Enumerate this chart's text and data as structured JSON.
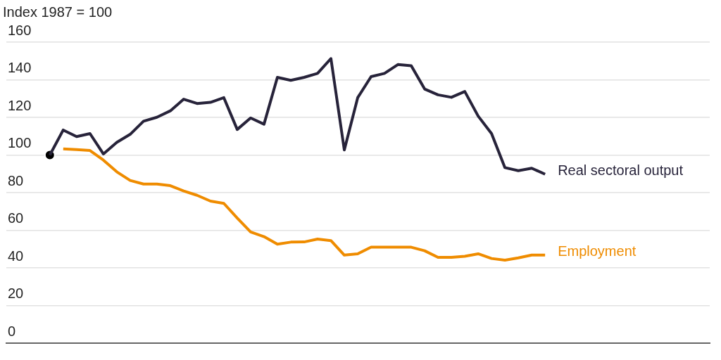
{
  "chart_data": {
    "type": "line",
    "title": "Index 1987 = 100",
    "categories": [
      null,
      null,
      null,
      null,
      null,
      null,
      null,
      null,
      null,
      null,
      null,
      null,
      null,
      null,
      null,
      null,
      null,
      null,
      null,
      null,
      null,
      null,
      null,
      null,
      null,
      null,
      null,
      null,
      null,
      null,
      null,
      null,
      null,
      null,
      null,
      null,
      null,
      null
    ],
    "ylim": [
      0,
      160
    ],
    "yticks": [
      0,
      20,
      40,
      60,
      80,
      100,
      120,
      140,
      160
    ],
    "tick_labels": "y",
    "grid": "y",
    "legend": false,
    "marker": "none",
    "line_style": "solid",
    "series": [
      {
        "name": "Real sectoral output",
        "color": "#27233a",
        "values": [
          100,
          113.3,
          109.8,
          111.4,
          100.6,
          106.7,
          111,
          118,
          120.1,
          123.5,
          129.7,
          127.4,
          128,
          130.5,
          113.6,
          119.7,
          116.4,
          141.3,
          139.7,
          141.3,
          143.4,
          151.3,
          102.7,
          130.5,
          141.7,
          143.4,
          148.1,
          147.5,
          135.1,
          132,
          130.7,
          133.8,
          120.7,
          111.4,
          93.3,
          91.7,
          93,
          89.8
        ]
      },
      {
        "name": "Employment",
        "color": "#ef8c00",
        "values": [
          null,
          103.3,
          102.9,
          102.4,
          97.3,
          91.1,
          86.5,
          84.6,
          84.6,
          83.7,
          80.9,
          78.6,
          75.5,
          74.3,
          66.5,
          59.1,
          56.6,
          52.6,
          53.7,
          53.8,
          55.3,
          54.5,
          46.8,
          47.5,
          51,
          51,
          51,
          51,
          49.1,
          45.6,
          45.6,
          46.2,
          47.5,
          45,
          44.1,
          45.3,
          46.8,
          46.8
        ]
      },
      {
        "type": "scatter",
        "color": "#000000",
        "marker": "circle",
        "values": [
          100,
          null,
          null,
          null,
          null,
          null,
          null,
          null,
          null,
          null,
          null,
          null,
          null,
          null,
          null,
          null,
          null,
          null,
          null,
          null,
          null,
          null,
          null,
          null,
          null,
          null,
          null,
          null,
          null,
          null,
          null,
          null,
          null,
          null,
          null,
          null,
          null,
          null
        ]
      }
    ]
  }
}
